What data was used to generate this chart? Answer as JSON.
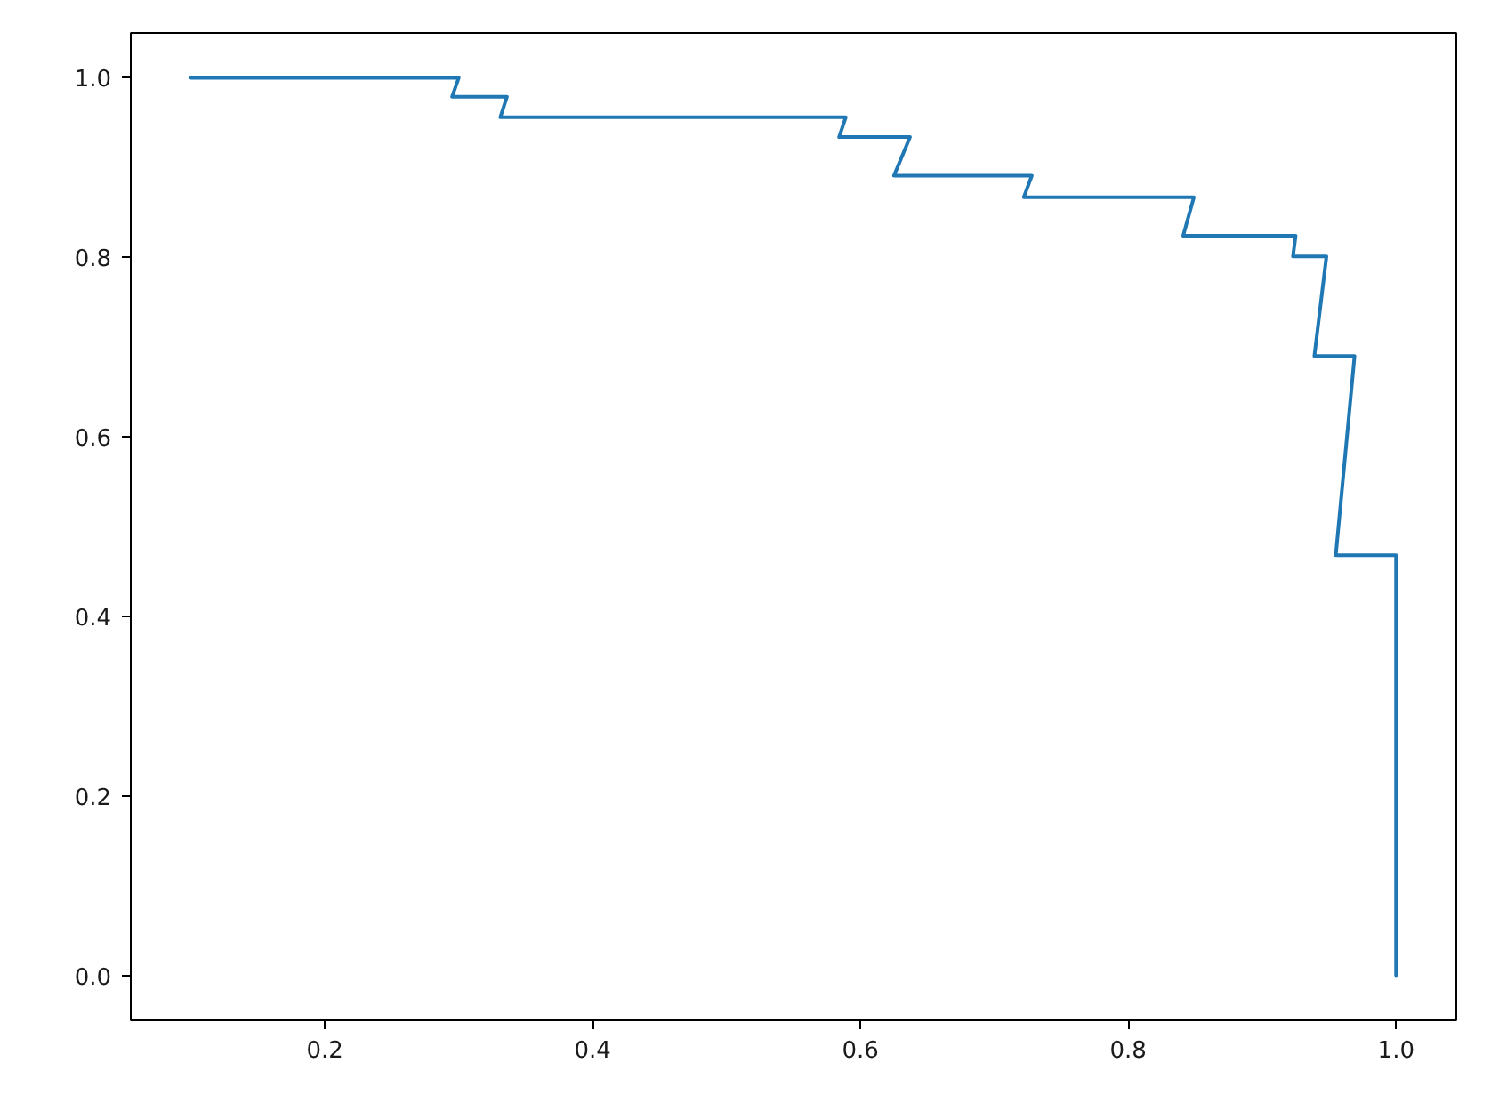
{
  "chart_data": {
    "type": "line",
    "x": [
      0.1,
      0.3,
      0.295,
      0.336,
      0.331,
      0.589,
      0.584,
      0.637,
      0.625,
      0.728,
      0.722,
      0.849,
      0.841,
      0.925,
      0.923,
      0.948,
      0.939,
      0.969,
      0.955,
      1.0,
      1.0
    ],
    "values": [
      1.0,
      1.0,
      0.979,
      0.979,
      0.956,
      0.956,
      0.934,
      0.934,
      0.891,
      0.891,
      0.867,
      0.867,
      0.824,
      0.824,
      0.801,
      0.801,
      0.69,
      0.69,
      0.468,
      0.468,
      0.0
    ],
    "color": "#1f77b4",
    "xlim": [
      0.055,
      1.045
    ],
    "ylim": [
      -0.05,
      1.05
    ],
    "xticks": [
      0.2,
      0.4,
      0.6,
      0.8,
      {
        "value": 1,
        "label": "1.0"
      }
    ],
    "yticks": [
      {
        "value": 0,
        "label": "0.0"
      },
      0.2,
      0.4,
      0.6,
      0.8,
      {
        "value": 1,
        "label": "1.0"
      }
    ]
  }
}
